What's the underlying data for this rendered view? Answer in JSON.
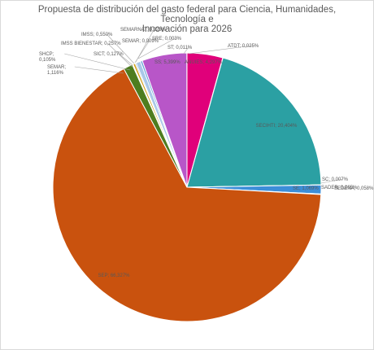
{
  "chart_data": {
    "type": "pie",
    "title_lines": [
      "Propuesta de distribución del gasto federal para Ciencia, Humanidades, Tecnología e",
      "Innovación para 2026"
    ],
    "slices": [
      {
        "name": "ANUIES",
        "label": "ANUIES; 4,297%",
        "value": 4.297,
        "color": "#e0007a"
      },
      {
        "name": "ATDT",
        "label": "ATDT; 0,025%",
        "value": 0.025,
        "color": "#ff8c1a"
      },
      {
        "name": "SECIHTI",
        "label": "SECIHTI; 20,404%",
        "value": 20.404,
        "color": "#2ba0a3"
      },
      {
        "name": "SC",
        "label": "SC; 0,007%",
        "value": 0.007,
        "color": "#4a4a4a"
      },
      {
        "name": "SADER",
        "label": "SADER; 0,005%",
        "value": 0.005,
        "color": "#c0504d"
      },
      {
        "name": "SE",
        "label": "SE; 1,069%",
        "value": 1.069,
        "color": "#3c8ed8"
      },
      {
        "name": "SEDENA",
        "label": "SEDENA; 0,058%",
        "value": 0.058,
        "color": "#8fb3d9"
      },
      {
        "name": "SEP",
        "label": "SEP; 66,327%",
        "value": 66.327,
        "color": "#c9520e"
      },
      {
        "name": "SEMAR",
        "label": "SEMAR; 1,116%",
        "value": 1.116,
        "color": "#4e7d1f"
      },
      {
        "name": "SHCP",
        "label": "SHCP; 0,105%",
        "value": 0.105,
        "color": "#7f7f7f"
      },
      {
        "name": "IMSS BIENESTAR",
        "label": "IMSS BIENESTAR; 0,257%",
        "value": 0.257,
        "color": "#d4a017"
      },
      {
        "name": "SICT",
        "label": "SICT; 0,127%",
        "value": 0.127,
        "color": "#1f5fa8"
      },
      {
        "name": "IMSS",
        "label": "IMSS; 0,550%",
        "value": 0.55,
        "color": "#a9c7e8"
      },
      {
        "name": "SEMAR2",
        "label": "SEMAR; 0,009%",
        "value": 0.009,
        "color": "#6aa84f"
      },
      {
        "name": "SEMARNAT",
        "label": "SEMARNAT; 0,226%",
        "value": 0.226,
        "color": "#5a9bd5"
      },
      {
        "name": "SRE",
        "label": "SRE; 0,003%",
        "value": 0.003,
        "color": "#bdbdbd"
      },
      {
        "name": "SS",
        "label": "SS; 5,399%",
        "value": 5.399,
        "color": "#b856c8"
      },
      {
        "name": "ST",
        "label": "ST; 0,011%",
        "value": 0.011,
        "color": "#7b3fa0"
      }
    ],
    "legend": "none"
  }
}
